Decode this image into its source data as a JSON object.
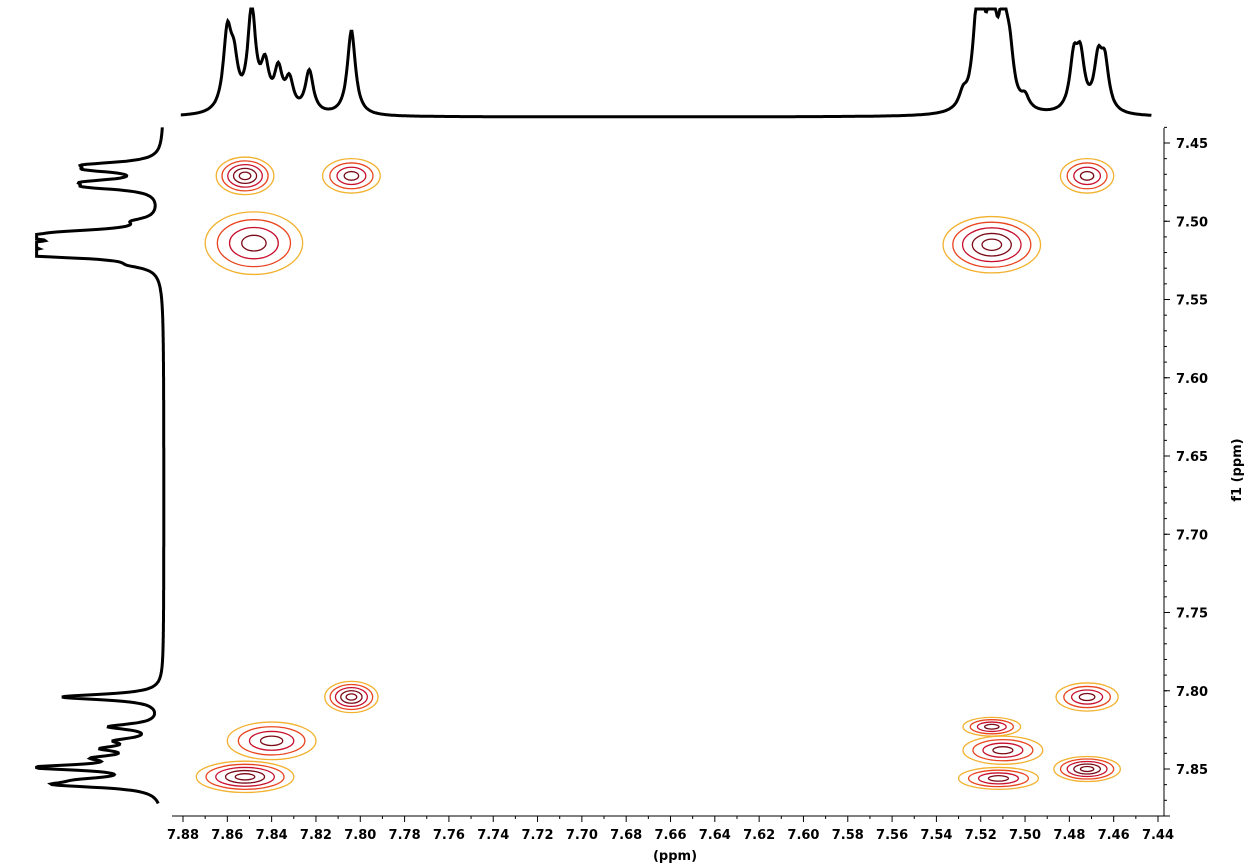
{
  "chart_data": {
    "type": "contour",
    "subtype": "2D NMR (COSY-like) with 1D projections",
    "xlabel": "(ppm)",
    "ylabel": "f1 (ppm)",
    "xlim": [
      7.88,
      7.44
    ],
    "ylim": [
      7.44,
      7.87
    ],
    "x_ticks": [
      "7.88",
      "7.86",
      "7.84",
      "7.82",
      "7.80",
      "7.78",
      "7.76",
      "7.74",
      "7.72",
      "7.70",
      "7.68",
      "7.66",
      "7.64",
      "7.62",
      "7.60",
      "7.58",
      "7.56",
      "7.54",
      "7.52",
      "7.50",
      "7.48",
      "7.46",
      "7.44"
    ],
    "y_ticks": [
      "7.45",
      "7.50",
      "7.55",
      "7.60",
      "7.65",
      "7.70",
      "7.75",
      "7.80",
      "7.85"
    ],
    "x_tick_values": [
      7.88,
      7.86,
      7.84,
      7.82,
      7.8,
      7.78,
      7.76,
      7.74,
      7.72,
      7.7,
      7.68,
      7.66,
      7.64,
      7.62,
      7.6,
      7.58,
      7.56,
      7.54,
      7.52,
      7.5,
      7.48,
      7.46,
      7.44
    ],
    "y_tick_values": [
      7.45,
      7.5,
      7.55,
      7.6,
      7.65,
      7.7,
      7.75,
      7.8,
      7.85
    ],
    "contour_colors": [
      "#f2b12e",
      "#e8451f",
      "#c8102e",
      "#7a0a18"
    ],
    "projection_color": "#000000",
    "top_projection_peaks": [
      {
        "ppm": 7.86,
        "height": 0.75
      },
      {
        "ppm": 7.857,
        "height": 0.42
      },
      {
        "ppm": 7.849,
        "height": 1.0
      },
      {
        "ppm": 7.843,
        "height": 0.42
      },
      {
        "ppm": 7.837,
        "height": 0.39
      },
      {
        "ppm": 7.832,
        "height": 0.3
      },
      {
        "ppm": 7.823,
        "height": 0.42
      },
      {
        "ppm": 7.804,
        "height": 0.85
      },
      {
        "ppm": 7.528,
        "height": 0.14
      },
      {
        "ppm": 7.522,
        "height": 0.55
      },
      {
        "ppm": 7.52,
        "height": 0.88
      },
      {
        "ppm": 7.515,
        "height": 1.05
      },
      {
        "ppm": 7.51,
        "height": 0.85
      },
      {
        "ppm": 7.507,
        "height": 0.48
      },
      {
        "ppm": 7.5,
        "height": 0.12
      },
      {
        "ppm": 7.478,
        "height": 0.5
      },
      {
        "ppm": 7.475,
        "height": 0.5
      },
      {
        "ppm": 7.467,
        "height": 0.48
      },
      {
        "ppm": 7.464,
        "height": 0.46
      }
    ],
    "left_projection_peaks": [
      {
        "ppm": 7.464,
        "height": 0.5
      },
      {
        "ppm": 7.467,
        "height": 0.45
      },
      {
        "ppm": 7.475,
        "height": 0.48
      },
      {
        "ppm": 7.478,
        "height": 0.48
      },
      {
        "ppm": 7.5,
        "height": 0.15
      },
      {
        "ppm": 7.507,
        "height": 0.5
      },
      {
        "ppm": 7.51,
        "height": 0.85
      },
      {
        "ppm": 7.515,
        "height": 1.05
      },
      {
        "ppm": 7.52,
        "height": 0.9
      },
      {
        "ppm": 7.522,
        "height": 0.55
      },
      {
        "ppm": 7.528,
        "height": 0.14
      },
      {
        "ppm": 7.804,
        "height": 0.85
      },
      {
        "ppm": 7.823,
        "height": 0.42
      },
      {
        "ppm": 7.832,
        "height": 0.3
      },
      {
        "ppm": 7.837,
        "height": 0.39
      },
      {
        "ppm": 7.843,
        "height": 0.42
      },
      {
        "ppm": 7.849,
        "height": 1.0
      },
      {
        "ppm": 7.857,
        "height": 0.42
      },
      {
        "ppm": 7.86,
        "height": 0.75
      }
    ],
    "cross_peaks": [
      {
        "x": 7.852,
        "y": 7.471,
        "wx": 0.013,
        "wy": 0.012,
        "levels": 5
      },
      {
        "x": 7.804,
        "y": 7.471,
        "wx": 0.013,
        "wy": 0.011,
        "levels": 4
      },
      {
        "x": 7.472,
        "y": 7.471,
        "wx": 0.012,
        "wy": 0.011,
        "levels": 4
      },
      {
        "x": 7.848,
        "y": 7.514,
        "wx": 0.022,
        "wy": 0.02,
        "levels": 4
      },
      {
        "x": 7.515,
        "y": 7.515,
        "wx": 0.022,
        "wy": 0.018,
        "levels": 5
      },
      {
        "x": 7.804,
        "y": 7.804,
        "wx": 0.012,
        "wy": 0.01,
        "levels": 5
      },
      {
        "x": 7.472,
        "y": 7.804,
        "wx": 0.014,
        "wy": 0.009,
        "levels": 4
      },
      {
        "x": 7.84,
        "y": 7.832,
        "wx": 0.02,
        "wy": 0.012,
        "levels": 4
      },
      {
        "x": 7.852,
        "y": 7.855,
        "wx": 0.022,
        "wy": 0.01,
        "levels": 5
      },
      {
        "x": 7.515,
        "y": 7.823,
        "wx": 0.013,
        "wy": 0.006,
        "levels": 4
      },
      {
        "x": 7.51,
        "y": 7.838,
        "wx": 0.018,
        "wy": 0.009,
        "levels": 4
      },
      {
        "x": 7.512,
        "y": 7.856,
        "wx": 0.018,
        "wy": 0.007,
        "levels": 4
      },
      {
        "x": 7.472,
        "y": 7.85,
        "wx": 0.015,
        "wy": 0.008,
        "levels": 5
      }
    ]
  }
}
